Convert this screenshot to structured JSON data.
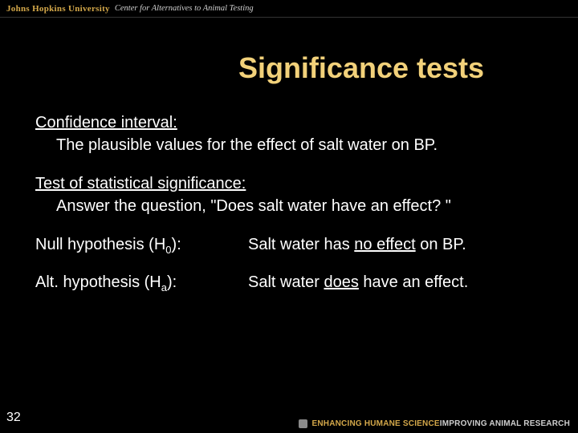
{
  "header": {
    "org": "Johns Hopkins University",
    "center": "Center for Alternatives to Animal Testing"
  },
  "title": "Significance tests",
  "sections": {
    "ci_head": "Confidence interval:",
    "ci_body": "The plausible values for the effect of salt water on BP.",
    "sig_head": "Test of statistical significance:",
    "sig_body": "Answer the question, \"Does salt water have an effect? \""
  },
  "hypotheses": {
    "null_label_pre": "Null hypothesis (H",
    "null_label_sub": "0",
    "null_label_post": "):",
    "null_value_pre": "Salt water has ",
    "null_value_u": "no effect",
    "null_value_post": " on BP.",
    "alt_label_pre": "Alt. hypothesis (H",
    "alt_label_sub": "a",
    "alt_label_post": "):",
    "alt_value_pre": "Salt water ",
    "alt_value_u": "does",
    "alt_value_post": " have an effect."
  },
  "footer": {
    "page": "32",
    "brand_a": "ENHANCING HUMANE SCIENCE",
    "brand_b": "IMPROVING ANIMAL RESEARCH"
  },
  "colors": {
    "background": "#000000",
    "title": "#f2d17a",
    "body_text": "#ffffff",
    "accent_gold": "#d4a84a",
    "accent_gray": "#cfcfcf"
  },
  "typography": {
    "title_fontsize": 36,
    "body_fontsize": 20,
    "header_fontsize": 11,
    "footer_fontsize": 10
  }
}
